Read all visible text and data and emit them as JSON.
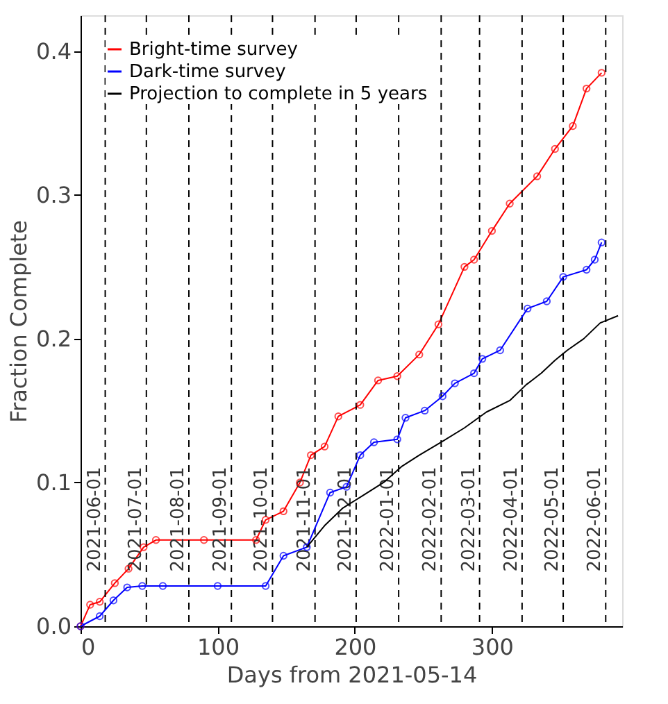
{
  "chart_data": {
    "type": "line",
    "xlabel": "Days from 2021-05-14",
    "ylabel": "Fraction Complete",
    "xlim": [
      0,
      395
    ],
    "ylim": [
      0,
      0.425
    ],
    "xticks": [
      0,
      100,
      200,
      300
    ],
    "yticks": [
      {
        "value": 0,
        "label": "0.0"
      },
      0.1,
      0.2,
      0.3,
      0.4
    ],
    "grid": false,
    "legend": "top left",
    "line_style": "solid",
    "series": [
      {
        "name": "Bright-time survey",
        "color": "#ff0000",
        "marker": "circle",
        "x": [
          0,
          7,
          14,
          25,
          35,
          46,
          55,
          90,
          128,
          135,
          148,
          160,
          168,
          178,
          188,
          204,
          217,
          231,
          247,
          261,
          280,
          287,
          300,
          313,
          333,
          346,
          359,
          369,
          380
        ],
        "values": [
          0,
          0.015,
          0.017,
          0.03,
          0.04,
          0.055,
          0.06,
          0.06,
          0.06,
          0.074,
          0.08,
          0.1,
          0.119,
          0.125,
          0.146,
          0.154,
          0.171,
          0.174,
          0.189,
          0.21,
          0.25,
          0.255,
          0.275,
          0.294,
          0.313,
          0.332,
          0.348,
          0.374,
          0.385
        ]
      },
      {
        "name": "Dark-time survey",
        "color": "#0000ff",
        "marker": "circle",
        "x": [
          0,
          14,
          24,
          34,
          45,
          60,
          100,
          135,
          148,
          165,
          182,
          194,
          204,
          214,
          231,
          237,
          251,
          264,
          273,
          287,
          293,
          306,
          326,
          340,
          352,
          369,
          375,
          380
        ],
        "values": [
          0,
          0.007,
          0.018,
          0.027,
          0.028,
          0.028,
          0.028,
          0.028,
          0.049,
          0.055,
          0.093,
          0.097,
          0.119,
          0.128,
          0.13,
          0.145,
          0.15,
          0.16,
          0.169,
          0.176,
          0.186,
          0.192,
          0.221,
          0.226,
          0.243,
          0.248,
          0.255,
          0.267
        ]
      },
      {
        "name": "Projection to complete in 5 years",
        "color": "#000000",
        "marker": "none",
        "x": [
          165,
          178,
          191,
          206,
          221,
          234,
          247,
          263,
          280,
          296,
          313,
          325,
          336,
          346,
          355,
          367,
          379,
          392
        ],
        "values": [
          0.055,
          0.07,
          0.082,
          0.091,
          0.1,
          0.111,
          0.119,
          0.128,
          0.138,
          0.149,
          0.157,
          0.168,
          0.176,
          0.185,
          0.192,
          0.2,
          0.211,
          0.216
        ]
      }
    ],
    "ref_lines": [
      {
        "axis": "x",
        "value": 18,
        "color": "#000000",
        "line_style": "dashed"
      },
      {
        "axis": "x",
        "value": 48,
        "color": "#000000",
        "line_style": "dashed"
      },
      {
        "axis": "x",
        "value": 79,
        "color": "#000000",
        "line_style": "dashed"
      },
      {
        "axis": "x",
        "value": 110,
        "color": "#000000",
        "line_style": "dashed"
      },
      {
        "axis": "x",
        "value": 140,
        "color": "#000000",
        "line_style": "dashed"
      },
      {
        "axis": "x",
        "value": 171,
        "color": "#000000",
        "line_style": "dashed"
      },
      {
        "axis": "x",
        "value": 201,
        "color": "#000000",
        "line_style": "dashed"
      },
      {
        "axis": "x",
        "value": 232,
        "color": "#000000",
        "line_style": "dashed"
      },
      {
        "axis": "x",
        "value": 263,
        "color": "#000000",
        "line_style": "dashed"
      },
      {
        "axis": "x",
        "value": 291,
        "color": "#000000",
        "line_style": "dashed"
      },
      {
        "axis": "x",
        "value": 322,
        "color": "#000000",
        "line_style": "dashed"
      },
      {
        "axis": "x",
        "value": 352,
        "color": "#000000",
        "line_style": "dashed"
      },
      {
        "axis": "x",
        "value": 383,
        "color": "#000000",
        "line_style": "dashed"
      }
    ],
    "annotations": [
      "2021-06-01",
      "2021-07-01",
      "2021-08-01",
      "2021-09-01",
      "2021-10-01",
      "2021-11-01",
      "2021-12-01",
      "2022-01-01",
      "2022-02-01",
      "2022-03-01",
      "2022-04-01",
      "2022-05-01",
      "2022-06-01"
    ]
  }
}
